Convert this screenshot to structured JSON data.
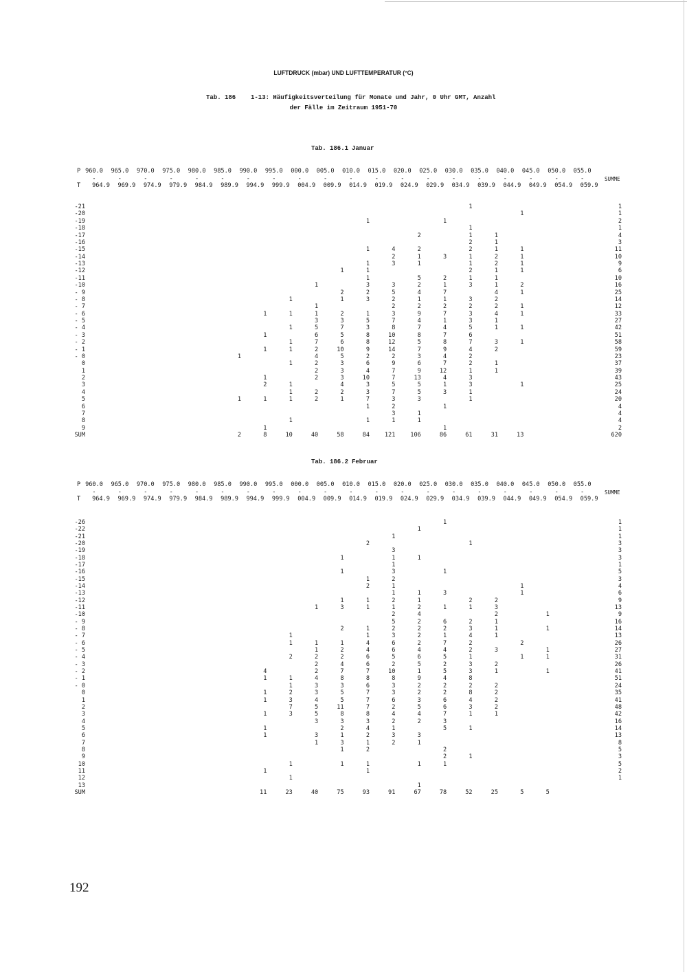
{
  "document": {
    "heading": "LUFTDRUCK (mbar) UND LUFTTEMPERATUR (°C)",
    "table_number": "Tab. 186",
    "caption_line1": "1-13: Häufigkeitsverteilung für Monate und Jahr, 0 Uhr GMT, Anzahl",
    "caption_line2": "der Fälle im Zeitraum 1951-70",
    "page_number": "192"
  },
  "header": {
    "p_label": "P",
    "t_label": "T",
    "dash": "-",
    "sum_label": "SUMME",
    "classes": [
      {
        "key": "960",
        "from": "960.0",
        "to": "964.9"
      },
      {
        "key": "965",
        "from": "965.0",
        "to": "969.9"
      },
      {
        "key": "970",
        "from": "970.0",
        "to": "974.9"
      },
      {
        "key": "975",
        "from": "975.0",
        "to": "979.9"
      },
      {
        "key": "980",
        "from": "980.0",
        "to": "984.9"
      },
      {
        "key": "985",
        "from": "985.0",
        "to": "989.9"
      },
      {
        "key": "990",
        "from": "990.0",
        "to": "994.9"
      },
      {
        "key": "995",
        "from": "995.0",
        "to": "999.9"
      },
      {
        "key": "000",
        "from": "000.0",
        "to": "004.9"
      },
      {
        "key": "005",
        "from": "005.0",
        "to": "009.9"
      },
      {
        "key": "010",
        "from": "010.0",
        "to": "014.9"
      },
      {
        "key": "015",
        "from": "015.0",
        "to": "019.9"
      },
      {
        "key": "020",
        "from": "020.0",
        "to": "024.9"
      },
      {
        "key": "025",
        "from": "025.0",
        "to": "029.9"
      },
      {
        "key": "030",
        "from": "030.0",
        "to": "034.9"
      },
      {
        "key": "035",
        "from": "035.0",
        "to": "039.9"
      },
      {
        "key": "040",
        "from": "040.0",
        "to": "044.9"
      },
      {
        "key": "045",
        "from": "045.0",
        "to": "049.9"
      },
      {
        "key": "050",
        "from": "050.0",
        "to": "054.9"
      },
      {
        "key": "055",
        "from": "055.0",
        "to": "059.9"
      }
    ]
  },
  "tables": [
    {
      "label": "Tab. 186.1",
      "month": "Januar",
      "rows": [
        {
          "t": "-21",
          "cells": {
            "030": "1"
          },
          "sum": "1"
        },
        {
          "t": "-20",
          "cells": {
            "040": "1"
          },
          "sum": "1"
        },
        {
          "t": "-19",
          "cells": {
            "010": "1",
            "025": "1"
          },
          "sum": "2"
        },
        {
          "t": "-18",
          "cells": {
            "030": "1"
          },
          "sum": "1"
        },
        {
          "t": "-17",
          "cells": {
            "020": "2",
            "030": "1",
            "035": "1"
          },
          "sum": "4"
        },
        {
          "t": "-16",
          "cells": {
            "030": "2",
            "035": "1"
          },
          "sum": "3"
        },
        {
          "t": "-15",
          "cells": {
            "010": "1",
            "015": "4",
            "020": "2",
            "030": "2",
            "035": "1",
            "040": "1"
          },
          "sum": "11"
        },
        {
          "t": "-14",
          "cells": {
            "015": "2",
            "020": "1",
            "025": "3",
            "030": "1",
            "035": "2",
            "040": "1"
          },
          "sum": "10"
        },
        {
          "t": "-13",
          "cells": {
            "010": "1",
            "015": "3",
            "020": "1",
            "030": "1",
            "035": "2",
            "040": "1"
          },
          "sum": "9"
        },
        {
          "t": "-12",
          "cells": {
            "005": "1",
            "010": "1",
            "030": "2",
            "035": "1",
            "040": "1"
          },
          "sum": "6"
        },
        {
          "t": "-11",
          "cells": {
            "010": "1",
            "020": "5",
            "025": "2",
            "030": "1",
            "035": "1"
          },
          "sum": "10"
        },
        {
          "t": "-10",
          "cells": {
            "000": "1",
            "010": "3",
            "015": "3",
            "020": "2",
            "025": "1",
            "030": "3",
            "035": "1",
            "040": "2"
          },
          "sum": "16"
        },
        {
          "t": "- 9",
          "cells": {
            "005": "2",
            "010": "2",
            "015": "5",
            "020": "4",
            "025": "7",
            "035": "4",
            "040": "1"
          },
          "sum": "25"
        },
        {
          "t": "- 8",
          "cells": {
            "995": "1",
            "005": "1",
            "010": "3",
            "015": "2",
            "020": "1",
            "025": "1",
            "030": "3",
            "035": "2"
          },
          "sum": "14"
        },
        {
          "t": "- 7",
          "cells": {
            "000": "1",
            "015": "2",
            "020": "2",
            "025": "2",
            "030": "2",
            "035": "2",
            "040": "1"
          },
          "sum": "12"
        },
        {
          "t": "- 6",
          "cells": {
            "990": "1",
            "995": "1",
            "000": "1",
            "005": "2",
            "010": "1",
            "015": "3",
            "020": "9",
            "025": "7",
            "030": "3",
            "035": "4",
            "040": "1"
          },
          "sum": "33"
        },
        {
          "t": "- 5",
          "cells": {
            "000": "3",
            "005": "3",
            "010": "5",
            "015": "7",
            "020": "4",
            "025": "1",
            "030": "3",
            "035": "1"
          },
          "sum": "27"
        },
        {
          "t": "- 4",
          "cells": {
            "995": "1",
            "000": "5",
            "005": "7",
            "010": "3",
            "015": "8",
            "020": "7",
            "025": "4",
            "030": "5",
            "035": "1",
            "040": "1"
          },
          "sum": "42"
        },
        {
          "t": "- 3",
          "cells": {
            "990": "1",
            "000": "6",
            "005": "5",
            "010": "8",
            "015": "10",
            "020": "8",
            "025": "7",
            "030": "6"
          },
          "sum": "51"
        },
        {
          "t": "- 2",
          "cells": {
            "995": "1",
            "000": "7",
            "005": "6",
            "010": "8",
            "015": "12",
            "020": "5",
            "025": "8",
            "030": "7",
            "035": "3",
            "040": "1"
          },
          "sum": "58"
        },
        {
          "t": "- 1",
          "cells": {
            "990": "1",
            "995": "1",
            "000": "2",
            "005": "10",
            "010": "9",
            "015": "14",
            "020": "7",
            "025": "9",
            "030": "4",
            "035": "2"
          },
          "sum": "59"
        },
        {
          "t": "- 0",
          "cells": {
            "985": "1",
            "000": "4",
            "005": "5",
            "010": "2",
            "015": "2",
            "020": "3",
            "025": "4",
            "030": "2"
          },
          "sum": "23"
        },
        {
          "t": "0",
          "cells": {
            "995": "1",
            "000": "2",
            "005": "3",
            "010": "6",
            "015": "9",
            "020": "6",
            "025": "7",
            "030": "2",
            "035": "1"
          },
          "sum": "37"
        },
        {
          "t": "1",
          "cells": {
            "000": "2",
            "005": "3",
            "010": "4",
            "015": "7",
            "020": "9",
            "025": "12",
            "030": "1",
            "035": "1"
          },
          "sum": "39"
        },
        {
          "t": "2",
          "cells": {
            "990": "1",
            "000": "2",
            "005": "3",
            "010": "10",
            "015": "7",
            "020": "13",
            "025": "4",
            "030": "3"
          },
          "sum": "43"
        },
        {
          "t": "3",
          "cells": {
            "990": "2",
            "995": "1",
            "005": "4",
            "010": "3",
            "015": "5",
            "020": "5",
            "025": "1",
            "030": "3",
            "040": "1"
          },
          "sum": "25"
        },
        {
          "t": "4",
          "cells": {
            "995": "1",
            "000": "2",
            "005": "2",
            "010": "3",
            "015": "7",
            "020": "5",
            "025": "3",
            "030": "1"
          },
          "sum": "24"
        },
        {
          "t": "5",
          "cells": {
            "985": "1",
            "990": "1",
            "995": "1",
            "000": "2",
            "005": "1",
            "010": "7",
            "015": "3",
            "020": "3",
            "030": "1"
          },
          "sum": "20"
        },
        {
          "t": "6",
          "cells": {
            "010": "1",
            "015": "2",
            "025": "1"
          },
          "sum": "4"
        },
        {
          "t": "7",
          "cells": {
            "015": "3",
            "020": "1"
          },
          "sum": "4"
        },
        {
          "t": "8",
          "cells": {
            "995": "1",
            "010": "1",
            "015": "1",
            "020": "1"
          },
          "sum": "4"
        },
        {
          "t": "9",
          "cells": {
            "990": "1",
            "025": "1"
          },
          "sum": "2"
        }
      ],
      "sum_row": {
        "t": "SUM",
        "cells": {
          "985": "2",
          "990": "8",
          "995": "10",
          "000": "40",
          "005": "58",
          "010": "84",
          "015": "121",
          "020": "106",
          "025": "86",
          "030": "61",
          "035": "31",
          "040": "13"
        },
        "sum": "620"
      }
    },
    {
      "label": "Tab. 186.2",
      "month": "Februar",
      "rows": [
        {
          "t": "-26",
          "cells": {
            "025": "1"
          },
          "sum": "1"
        },
        {
          "t": "-22",
          "cells": {
            "020": "1"
          },
          "sum": "1"
        },
        {
          "t": "-21",
          "cells": {
            "015": "1"
          },
          "sum": "1"
        },
        {
          "t": "-20",
          "cells": {
            "010": "2",
            "030": "1"
          },
          "sum": "3"
        },
        {
          "t": "-19",
          "cells": {
            "015": "3"
          },
          "sum": "3"
        },
        {
          "t": "-18",
          "cells": {
            "005": "1",
            "015": "1",
            "020": "1"
          },
          "sum": "3"
        },
        {
          "t": "-17",
          "cells": {
            "015": "1"
          },
          "sum": "1"
        },
        {
          "t": "-16",
          "cells": {
            "005": "1",
            "015": "3",
            "025": "1"
          },
          "sum": "5"
        },
        {
          "t": "-15",
          "cells": {
            "010": "1",
            "015": "2"
          },
          "sum": "3"
        },
        {
          "t": "-14",
          "cells": {
            "010": "2",
            "015": "1",
            "040": "1"
          },
          "sum": "4"
        },
        {
          "t": "-13",
          "cells": {
            "015": "1",
            "020": "1",
            "025": "3",
            "040": "1"
          },
          "sum": "6"
        },
        {
          "t": "-12",
          "cells": {
            "005": "1",
            "010": "1",
            "015": "2",
            "020": "1",
            "030": "2",
            "035": "2"
          },
          "sum": "9"
        },
        {
          "t": "-11",
          "cells": {
            "000": "1",
            "005": "3",
            "010": "1",
            "015": "1",
            "020": "2",
            "025": "1",
            "030": "1",
            "035": "3"
          },
          "sum": "13"
        },
        {
          "t": "-10",
          "cells": {
            "015": "2",
            "020": "4",
            "035": "2",
            "045": "1"
          },
          "sum": "9"
        },
        {
          "t": "- 9",
          "cells": {
            "015": "5",
            "020": "2",
            "025": "6",
            "030": "2",
            "035": "1"
          },
          "sum": "16"
        },
        {
          "t": "- 8",
          "cells": {
            "005": "2",
            "010": "1",
            "015": "2",
            "020": "2",
            "025": "2",
            "030": "3",
            "035": "1",
            "045": "1"
          },
          "sum": "14"
        },
        {
          "t": "- 7",
          "cells": {
            "995": "1",
            "010": "1",
            "015": "3",
            "020": "2",
            "025": "1",
            "030": "4",
            "035": "1"
          },
          "sum": "13"
        },
        {
          "t": "- 6",
          "cells": {
            "995": "1",
            "000": "1",
            "005": "1",
            "010": "4",
            "015": "6",
            "020": "2",
            "025": "7",
            "030": "2",
            "040": "2"
          },
          "sum": "26"
        },
        {
          "t": "- 5",
          "cells": {
            "000": "1",
            "005": "2",
            "010": "4",
            "015": "6",
            "020": "4",
            "025": "4",
            "030": "2",
            "035": "3",
            "045": "1"
          },
          "sum": "27"
        },
        {
          "t": "- 4",
          "cells": {
            "995": "2",
            "000": "2",
            "005": "2",
            "010": "6",
            "015": "5",
            "020": "6",
            "025": "5",
            "030": "1",
            "040": "1",
            "045": "1"
          },
          "sum": "31"
        },
        {
          "t": "- 3",
          "cells": {
            "000": "2",
            "005": "4",
            "010": "6",
            "015": "2",
            "020": "5",
            "025": "2",
            "030": "3",
            "035": "2"
          },
          "sum": "26"
        },
        {
          "t": "- 2",
          "cells": {
            "990": "4",
            "000": "2",
            "005": "7",
            "010": "7",
            "015": "10",
            "020": "1",
            "025": "5",
            "030": "3",
            "035": "1",
            "045": "1"
          },
          "sum": "41"
        },
        {
          "t": "- 1",
          "cells": {
            "990": "1",
            "995": "1",
            "000": "4",
            "005": "8",
            "010": "8",
            "015": "8",
            "020": "9",
            "025": "4",
            "030": "8"
          },
          "sum": "51"
        },
        {
          "t": "- 0",
          "cells": {
            "995": "1",
            "000": "3",
            "005": "3",
            "010": "6",
            "015": "3",
            "020": "2",
            "025": "2",
            "030": "2",
            "035": "2"
          },
          "sum": "24"
        },
        {
          "t": "0",
          "cells": {
            "990": "1",
            "995": "2",
            "000": "3",
            "005": "5",
            "010": "7",
            "015": "3",
            "020": "2",
            "025": "2",
            "030": "8",
            "035": "2"
          },
          "sum": "35"
        },
        {
          "t": "1",
          "cells": {
            "990": "1",
            "995": "3",
            "000": "4",
            "005": "5",
            "010": "7",
            "015": "6",
            "020": "3",
            "025": "6",
            "030": "4",
            "035": "2"
          },
          "sum": "41"
        },
        {
          "t": "2",
          "cells": {
            "995": "7",
            "000": "5",
            "005": "11",
            "010": "7",
            "015": "2",
            "020": "5",
            "025": "6",
            "030": "3",
            "035": "2"
          },
          "sum": "48"
        },
        {
          "t": "3",
          "cells": {
            "990": "1",
            "995": "3",
            "000": "5",
            "005": "8",
            "010": "8",
            "015": "4",
            "020": "4",
            "025": "7",
            "030": "1",
            "035": "1"
          },
          "sum": "42"
        },
        {
          "t": "4",
          "cells": {
            "000": "3",
            "005": "3",
            "010": "3",
            "015": "2",
            "020": "2",
            "025": "3"
          },
          "sum": "16"
        },
        {
          "t": "5",
          "cells": {
            "990": "1",
            "005": "2",
            "010": "4",
            "015": "1",
            "025": "5",
            "030": "1"
          },
          "sum": "14"
        },
        {
          "t": "6",
          "cells": {
            "990": "1",
            "000": "3",
            "005": "1",
            "010": "2",
            "015": "3",
            "020": "3"
          },
          "sum": "13"
        },
        {
          "t": "7",
          "cells": {
            "000": "1",
            "005": "3",
            "010": "1",
            "015": "2",
            "020": "1"
          },
          "sum": "8"
        },
        {
          "t": "8",
          "cells": {
            "005": "1",
            "010": "2",
            "025": "2"
          },
          "sum": "5"
        },
        {
          "t": "9",
          "cells": {
            "025": "2",
            "030": "1"
          },
          "sum": "3"
        },
        {
          "t": "10",
          "cells": {
            "995": "1",
            "005": "1",
            "010": "1",
            "020": "1",
            "025": "1"
          },
          "sum": "5"
        },
        {
          "t": "11",
          "cells": {
            "990": "1",
            "010": "1"
          },
          "sum": "2"
        },
        {
          "t": "12",
          "cells": {
            "995": "1"
          },
          "sum": "1"
        },
        {
          "t": "13",
          "cells": {
            "020": "1"
          },
          "sum": ""
        }
      ],
      "sum_row": {
        "t": "SUM",
        "cells": {
          "990": "11",
          "995": "23",
          "000": "40",
          "005": "75",
          "010": "93",
          "015": "91",
          "020": "67",
          "025": "78",
          "030": "52",
          "035": "25",
          "040": "5",
          "045": "5"
        },
        "sum": ""
      }
    }
  ]
}
